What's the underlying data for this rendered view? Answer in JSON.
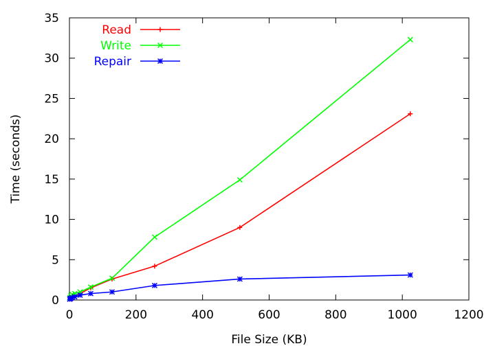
{
  "chart_data": {
    "type": "line",
    "xlabel": "File Size (KB)",
    "ylabel": "Time (seconds)",
    "xlim": [
      0,
      1200
    ],
    "ylim": [
      0,
      35
    ],
    "xticks": [
      0,
      200,
      400,
      600,
      800,
      1000,
      1200
    ],
    "yticks": [
      0,
      5,
      10,
      15,
      20,
      25,
      30,
      35
    ],
    "xtick_labels": [
      "0",
      "200",
      "400",
      "600",
      "800",
      "1000",
      "1200"
    ],
    "ytick_labels": [
      "0",
      "5",
      "10",
      "15",
      "20",
      "25",
      "30",
      "35"
    ],
    "grid": false,
    "legend_position": "top-left",
    "series": [
      {
        "name": "Read",
        "color": "#ff0000",
        "marker": "plus",
        "x": [
          1,
          2,
          4,
          8,
          16,
          32,
          64,
          128,
          256,
          512,
          1024
        ],
        "y": [
          0.1,
          0.15,
          0.25,
          0.4,
          0.55,
          0.8,
          1.5,
          2.6,
          4.2,
          9.0,
          23.1
        ]
      },
      {
        "name": "Write",
        "color": "#00ff00",
        "marker": "cross",
        "x": [
          1,
          2,
          4,
          8,
          16,
          32,
          64,
          128,
          256,
          512,
          1024
        ],
        "y": [
          0.2,
          0.3,
          0.5,
          0.7,
          0.8,
          1.0,
          1.6,
          2.7,
          7.8,
          14.9,
          32.3
        ]
      },
      {
        "name": "Repair",
        "color": "#0000ff",
        "marker": "star",
        "x": [
          1,
          2,
          4,
          8,
          16,
          32,
          64,
          128,
          256,
          512,
          1024
        ],
        "y": [
          0.1,
          0.15,
          0.2,
          0.3,
          0.4,
          0.6,
          0.8,
          1.0,
          1.8,
          2.6,
          3.1
        ]
      }
    ]
  }
}
